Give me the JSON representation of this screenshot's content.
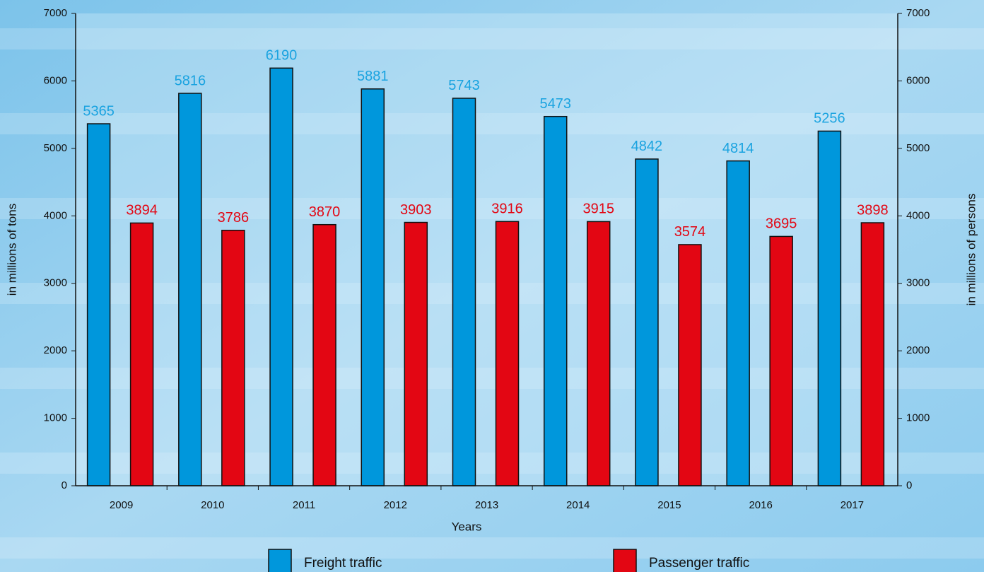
{
  "chart_data": {
    "type": "bar",
    "categories": [
      "2009",
      "2010",
      "2011",
      "2012",
      "2013",
      "2014",
      "2015",
      "2016",
      "2017"
    ],
    "series": [
      {
        "name": "Freight traffic",
        "color": "#0097dc",
        "label_color": "#1aa3e0",
        "values": [
          5365,
          5816,
          6190,
          5881,
          5743,
          5473,
          4842,
          4814,
          5256
        ]
      },
      {
        "name": "Passenger traffic",
        "color": "#e30613",
        "label_color": "#e30613",
        "axis": "y2",
        "values": [
          3894,
          3786,
          3870,
          3903,
          3916,
          3915,
          3574,
          3695,
          3898
        ]
      }
    ],
    "xlabel": "Years",
    "ylabel": "in millions of tons",
    "y2label": "in millions of persons",
    "ylim": [
      0,
      7000
    ],
    "yticks": [
      0,
      1000,
      2000,
      3000,
      4000,
      5000,
      6000,
      7000
    ],
    "y2lim": [
      0,
      7000
    ],
    "y2ticks": [
      0,
      1000,
      2000,
      3000,
      4000,
      5000,
      6000,
      7000
    ],
    "legend": "bottom"
  }
}
